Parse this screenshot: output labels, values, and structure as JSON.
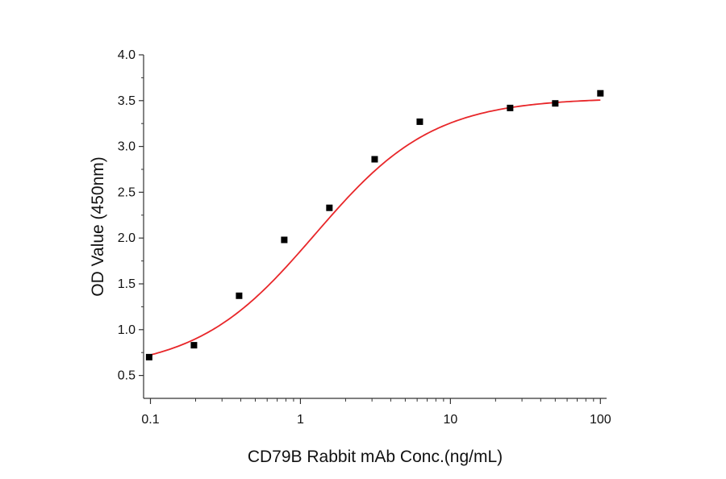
{
  "chart_data": {
    "type": "scatter",
    "title": "",
    "xlabel": "CD79B Rabbit mAb Conc.(ng/mL)",
    "ylabel": "OD Value (450nm)",
    "x_scale": "log",
    "xlim": [
      0.09,
      110
    ],
    "ylim": [
      0.25,
      4.0
    ],
    "x_ticks": [
      0.1,
      1,
      10,
      100
    ],
    "x_tick_labels": [
      "0.1",
      "1",
      "10",
      "100"
    ],
    "y_ticks": [
      0.5,
      1.0,
      1.5,
      2.0,
      2.5,
      3.0,
      3.5,
      4.0
    ],
    "y_tick_labels": [
      "0.5",
      "1.0",
      "1.5",
      "2.0",
      "2.5",
      "3.0",
      "3.5",
      "4.0"
    ],
    "grid": false,
    "legend": "none",
    "series": [
      {
        "x": [
          0.098,
          0.195,
          0.39,
          0.78,
          1.56,
          3.125,
          6.25,
          25,
          50,
          100
        ],
        "y": [
          0.7,
          0.83,
          1.37,
          1.98,
          2.33,
          2.86,
          3.27,
          3.42,
          3.47,
          3.58
        ],
        "marker": "square",
        "color": "#000000"
      }
    ],
    "fit_curve": {
      "model": "4PL",
      "bottom": 0.55,
      "top": 3.53,
      "ec50": 1.25,
      "hill": 1.1,
      "color": "#e8272a"
    },
    "axis_color": "#333333"
  }
}
